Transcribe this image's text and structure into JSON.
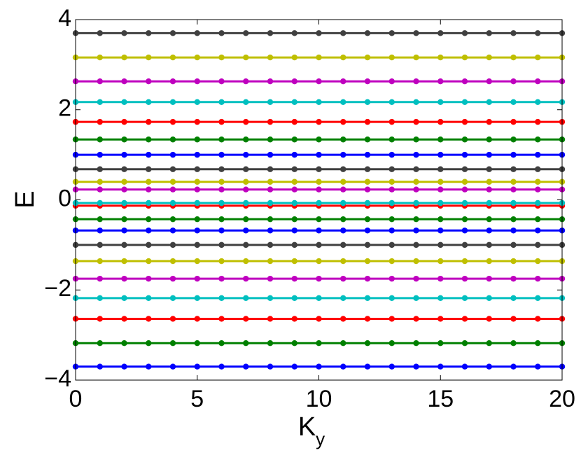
{
  "chart_data": {
    "type": "line",
    "xlabel": "K",
    "xlabel_subscript": "y",
    "ylabel": "E",
    "x": [
      0,
      1,
      2,
      3,
      4,
      5,
      6,
      7,
      8,
      9,
      10,
      11,
      12,
      13,
      14,
      15,
      16,
      17,
      18,
      19,
      20
    ],
    "xlim": [
      0,
      20
    ],
    "xticks": [
      0,
      5,
      10,
      15,
      20
    ],
    "ylim": [
      -4,
      4
    ],
    "yticks": [
      {
        "value": -4,
        "label": "−4"
      },
      {
        "value": -2,
        "label": "−2"
      },
      0,
      2,
      4
    ],
    "series": [
      {
        "color": "#0000ff",
        "values": [
          -3.7,
          -3.7,
          -3.7,
          -3.7,
          -3.7,
          -3.7,
          -3.7,
          -3.7,
          -3.7,
          -3.7,
          -3.7,
          -3.7,
          -3.7,
          -3.7,
          -3.7,
          -3.7,
          -3.7,
          -3.7,
          -3.7,
          -3.7,
          -3.7
        ]
      },
      {
        "color": "#008000",
        "values": [
          -3.18,
          -3.18,
          -3.18,
          -3.18,
          -3.18,
          -3.18,
          -3.18,
          -3.18,
          -3.18,
          -3.18,
          -3.18,
          -3.18,
          -3.18,
          -3.18,
          -3.18,
          -3.18,
          -3.18,
          -3.18,
          -3.18,
          -3.18,
          -3.18
        ]
      },
      {
        "color": "#ff0000",
        "values": [
          -2.64,
          -2.64,
          -2.64,
          -2.64,
          -2.64,
          -2.64,
          -2.64,
          -2.64,
          -2.64,
          -2.64,
          -2.64,
          -2.64,
          -2.64,
          -2.64,
          -2.64,
          -2.64,
          -2.64,
          -2.64,
          -2.64,
          -2.64,
          -2.64
        ]
      },
      {
        "color": "#00bfbf",
        "values": [
          -2.18,
          -2.18,
          -2.18,
          -2.18,
          -2.18,
          -2.18,
          -2.18,
          -2.18,
          -2.18,
          -2.18,
          -2.18,
          -2.18,
          -2.18,
          -2.18,
          -2.18,
          -2.18,
          -2.18,
          -2.18,
          -2.18,
          -2.18,
          -2.18
        ]
      },
      {
        "color": "#bf00bf",
        "values": [
          -1.75,
          -1.75,
          -1.75,
          -1.75,
          -1.75,
          -1.75,
          -1.75,
          -1.75,
          -1.75,
          -1.75,
          -1.75,
          -1.75,
          -1.75,
          -1.75,
          -1.75,
          -1.75,
          -1.75,
          -1.75,
          -1.75,
          -1.75,
          -1.75
        ]
      },
      {
        "color": "#bfbf00",
        "values": [
          -1.36,
          -1.36,
          -1.36,
          -1.36,
          -1.36,
          -1.36,
          -1.36,
          -1.36,
          -1.36,
          -1.36,
          -1.36,
          -1.36,
          -1.36,
          -1.36,
          -1.36,
          -1.36,
          -1.36,
          -1.36,
          -1.36,
          -1.36,
          -1.36
        ]
      },
      {
        "color": "#404040",
        "values": [
          -1.0,
          -1.0,
          -1.0,
          -1.0,
          -1.0,
          -1.0,
          -1.0,
          -1.0,
          -1.0,
          -1.0,
          -1.0,
          -1.0,
          -1.0,
          -1.0,
          -1.0,
          -1.0,
          -1.0,
          -1.0,
          -1.0,
          -1.0,
          -1.0
        ]
      },
      {
        "color": "#0000ff",
        "values": [
          -0.68,
          -0.68,
          -0.68,
          -0.68,
          -0.68,
          -0.68,
          -0.68,
          -0.68,
          -0.68,
          -0.68,
          -0.68,
          -0.68,
          -0.68,
          -0.68,
          -0.68,
          -0.68,
          -0.68,
          -0.68,
          -0.68,
          -0.68,
          -0.68
        ]
      },
      {
        "color": "#008000",
        "values": [
          -0.43,
          -0.43,
          -0.43,
          -0.43,
          -0.43,
          -0.43,
          -0.43,
          -0.43,
          -0.43,
          -0.43,
          -0.43,
          -0.43,
          -0.43,
          -0.43,
          -0.43,
          -0.43,
          -0.43,
          -0.43,
          -0.43,
          -0.43,
          -0.43
        ]
      },
      {
        "color": "#ff0000",
        "values": [
          -0.13,
          -0.13,
          -0.13,
          -0.13,
          -0.13,
          -0.13,
          -0.13,
          -0.13,
          -0.13,
          -0.13,
          -0.13,
          -0.13,
          -0.13,
          -0.13,
          -0.13,
          -0.13,
          -0.13,
          -0.13,
          -0.13,
          -0.13,
          -0.13
        ]
      },
      {
        "color": "#00bfbf",
        "values": [
          -0.07,
          -0.07,
          -0.07,
          -0.07,
          -0.07,
          -0.07,
          -0.07,
          -0.07,
          -0.07,
          -0.07,
          -0.07,
          -0.07,
          -0.07,
          -0.07,
          -0.07,
          -0.07,
          -0.07,
          -0.07,
          -0.07,
          -0.07,
          -0.07
        ]
      },
      {
        "color": "#bf00bf",
        "values": [
          0.23,
          0.23,
          0.23,
          0.23,
          0.23,
          0.23,
          0.23,
          0.23,
          0.23,
          0.23,
          0.23,
          0.23,
          0.23,
          0.23,
          0.23,
          0.23,
          0.23,
          0.23,
          0.23,
          0.23,
          0.23
        ]
      },
      {
        "color": "#bfbf00",
        "values": [
          0.4,
          0.4,
          0.4,
          0.4,
          0.4,
          0.4,
          0.4,
          0.4,
          0.4,
          0.4,
          0.4,
          0.4,
          0.4,
          0.4,
          0.4,
          0.4,
          0.4,
          0.4,
          0.4,
          0.4,
          0.4
        ]
      },
      {
        "color": "#404040",
        "values": [
          0.68,
          0.68,
          0.68,
          0.68,
          0.68,
          0.68,
          0.68,
          0.68,
          0.68,
          0.68,
          0.68,
          0.68,
          0.68,
          0.68,
          0.68,
          0.68,
          0.68,
          0.68,
          0.68,
          0.68,
          0.68
        ]
      },
      {
        "color": "#0000ff",
        "values": [
          1.0,
          1.0,
          1.0,
          1.0,
          1.0,
          1.0,
          1.0,
          1.0,
          1.0,
          1.0,
          1.0,
          1.0,
          1.0,
          1.0,
          1.0,
          1.0,
          1.0,
          1.0,
          1.0,
          1.0,
          1.0
        ]
      },
      {
        "color": "#008000",
        "values": [
          1.34,
          1.34,
          1.34,
          1.34,
          1.34,
          1.34,
          1.34,
          1.34,
          1.34,
          1.34,
          1.34,
          1.34,
          1.34,
          1.34,
          1.34,
          1.34,
          1.34,
          1.34,
          1.34,
          1.34,
          1.34
        ]
      },
      {
        "color": "#ff0000",
        "values": [
          1.73,
          1.73,
          1.73,
          1.73,
          1.73,
          1.73,
          1.73,
          1.73,
          1.73,
          1.73,
          1.73,
          1.73,
          1.73,
          1.73,
          1.73,
          1.73,
          1.73,
          1.73,
          1.73,
          1.73,
          1.73
        ]
      },
      {
        "color": "#00bfbf",
        "values": [
          2.17,
          2.17,
          2.17,
          2.17,
          2.17,
          2.17,
          2.17,
          2.17,
          2.17,
          2.17,
          2.17,
          2.17,
          2.17,
          2.17,
          2.17,
          2.17,
          2.17,
          2.17,
          2.17,
          2.17,
          2.17
        ]
      },
      {
        "color": "#bf00bf",
        "values": [
          2.63,
          2.63,
          2.63,
          2.63,
          2.63,
          2.63,
          2.63,
          2.63,
          2.63,
          2.63,
          2.63,
          2.63,
          2.63,
          2.63,
          2.63,
          2.63,
          2.63,
          2.63,
          2.63,
          2.63,
          2.63
        ]
      },
      {
        "color": "#bfbf00",
        "values": [
          3.16,
          3.16,
          3.16,
          3.16,
          3.16,
          3.16,
          3.16,
          3.16,
          3.16,
          3.16,
          3.16,
          3.16,
          3.16,
          3.16,
          3.16,
          3.16,
          3.16,
          3.16,
          3.16,
          3.16,
          3.16
        ]
      },
      {
        "color": "#404040",
        "values": [
          3.7,
          3.7,
          3.7,
          3.7,
          3.7,
          3.7,
          3.7,
          3.7,
          3.7,
          3.7,
          3.7,
          3.7,
          3.7,
          3.7,
          3.7,
          3.7,
          3.7,
          3.7,
          3.7,
          3.7,
          3.7
        ]
      }
    ]
  }
}
